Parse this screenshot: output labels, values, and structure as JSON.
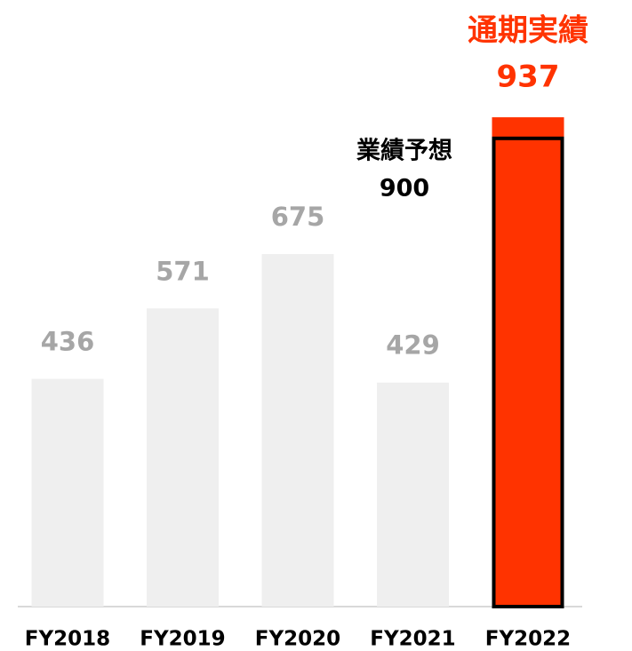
{
  "chart_data": {
    "type": "bar",
    "categories": [
      "FY2018",
      "FY2019",
      "FY2020",
      "FY2021",
      "FY2022"
    ],
    "values": [
      436,
      571,
      675,
      429,
      937
    ],
    "colors": [
      "#efefef",
      "#efefef",
      "#efefef",
      "#efefef",
      "#ff3300"
    ],
    "label_colors": [
      "#a6a6a6",
      "#a6a6a6",
      "#a6a6a6",
      "#a6a6a6",
      "#ff3300"
    ],
    "actual_label": "通期実績",
    "forecast_label": "業績予想",
    "forecast_value": 900,
    "ylim": [
      0,
      1000
    ]
  }
}
